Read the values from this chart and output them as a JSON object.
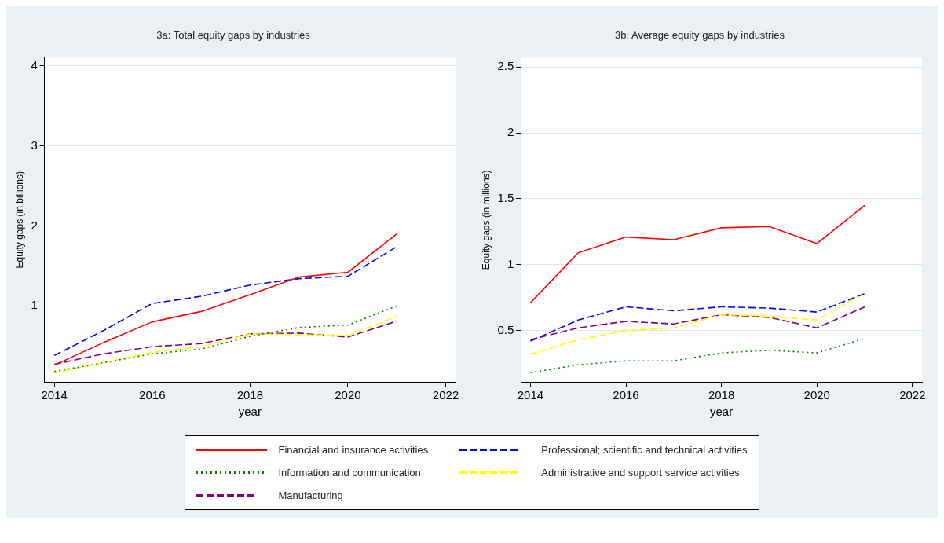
{
  "chart_data": [
    {
      "type": "line",
      "title": "3a: Total equity gaps by industries",
      "xlabel": "year",
      "ylabel": "Equity gaps (in billions)",
      "x": [
        2014,
        2015,
        2016,
        2017,
        2018,
        2019,
        2020,
        2021
      ],
      "xlim": [
        2013.8,
        2022.2
      ],
      "xticks": [
        2014,
        2016,
        2018,
        2020,
        2022
      ],
      "ylim": [
        0.05,
        4.1
      ],
      "yticks": [
        1,
        2,
        3,
        4
      ],
      "grid": "y",
      "legend": "bottom",
      "marker": "none",
      "series": [
        {
          "name": "Financial and insurance activities",
          "color": "#ff0000",
          "line_style": "solid",
          "values": [
            0.26,
            0.54,
            0.8,
            0.93,
            1.14,
            1.36,
            1.42,
            1.9
          ]
        },
        {
          "name": "Professional; scientific and technical activities",
          "color": "#0000ff",
          "line_style": "dashed",
          "values": [
            0.38,
            0.69,
            1.03,
            1.12,
            1.26,
            1.34,
            1.37,
            1.74
          ]
        },
        {
          "name": "Information and communication",
          "color": "#008000",
          "line_style": "dotted",
          "values": [
            0.18,
            0.29,
            0.4,
            0.46,
            0.62,
            0.73,
            0.76,
            1.0
          ]
        },
        {
          "name": "Administrative and support service activities",
          "color": "#ffff00",
          "line_style": "dashed",
          "values": [
            0.16,
            0.29,
            0.42,
            0.49,
            0.65,
            0.64,
            0.63,
            0.87
          ]
        },
        {
          "name": "Manufacturing",
          "color": "#800080",
          "line_style": "dashed",
          "values": [
            0.27,
            0.4,
            0.49,
            0.53,
            0.65,
            0.66,
            0.61,
            0.81
          ]
        }
      ]
    },
    {
      "type": "line",
      "title": "3b: Average equity gaps by industries",
      "xlabel": "year",
      "ylabel": "Equity gaps (in millions)",
      "x": [
        2014,
        2015,
        2016,
        2017,
        2018,
        2019,
        2020,
        2021
      ],
      "xlim": [
        2013.8,
        2022.2
      ],
      "xticks": [
        2014,
        2016,
        2018,
        2020,
        2022
      ],
      "ylim": [
        0.11,
        2.57
      ],
      "yticks": [
        0.5,
        1,
        1.5,
        2,
        2.5
      ],
      "grid": "y",
      "marker": "none",
      "series": [
        {
          "color": "#ff0000",
          "line_style": "solid",
          "values": [
            0.71,
            1.09,
            1.21,
            1.19,
            1.28,
            1.29,
            1.16,
            1.45
          ]
        },
        {
          "color": "#0000ff",
          "line_style": "dashed",
          "values": [
            0.42,
            0.58,
            0.68,
            0.65,
            0.68,
            0.67,
            0.64,
            0.78
          ]
        },
        {
          "color": "#008000",
          "line_style": "dotted",
          "values": [
            0.18,
            0.24,
            0.27,
            0.27,
            0.33,
            0.35,
            0.33,
            0.44
          ]
        },
        {
          "color": "#ffff00",
          "line_style": "dashed",
          "values": [
            0.32,
            0.43,
            0.5,
            0.52,
            0.62,
            0.61,
            0.58,
            0.79
          ]
        },
        {
          "color": "#800080",
          "line_style": "dashed",
          "values": [
            0.43,
            0.52,
            0.57,
            0.55,
            0.62,
            0.6,
            0.52,
            0.68
          ]
        }
      ]
    }
  ]
}
